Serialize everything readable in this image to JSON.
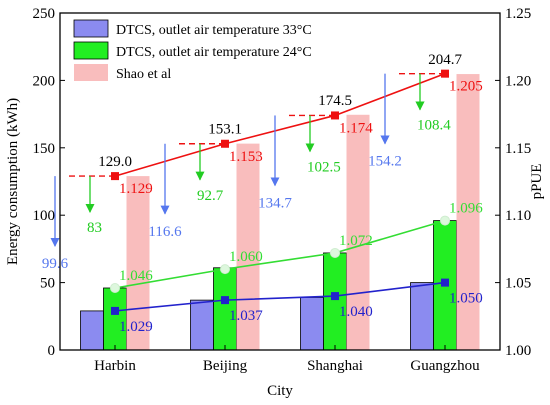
{
  "chart_data": {
    "type": "bar",
    "xlabel": "City",
    "ylabel": "Energy consumption (kWh)",
    "y2label": "pPUE",
    "categories": [
      "Harbin",
      "Beijing",
      "Shanghai",
      "Guangzhou"
    ],
    "ylim": [
      0,
      250
    ],
    "yticks": [
      "0",
      "50",
      "100",
      "150",
      "200",
      "250"
    ],
    "y2lim": [
      1.0,
      1.25
    ],
    "y2ticks": [
      "1.00",
      "1.05",
      "1.10",
      "1.15",
      "1.20",
      "1.25"
    ],
    "legend_position": "top-left",
    "series": [
      {
        "name": "DTCS, outlet air temperature 33°C",
        "type": "bar",
        "color": "#8B8BF0",
        "values": [
          29,
          37,
          39,
          50
        ]
      },
      {
        "name": "DTCS, outlet air temperature 24°C",
        "type": "bar",
        "color": "#22EE22",
        "values": [
          46,
          61,
          72,
          96
        ]
      },
      {
        "name": "Shao et al",
        "type": "bar",
        "color": "#F9BDBD",
        "values": [
          129.0,
          153.1,
          174.5,
          204.7
        ]
      }
    ],
    "bar_labels": {
      "shao": [
        "129.0",
        "153.1",
        "174.5",
        "204.7"
      ]
    },
    "ppue_lines": [
      {
        "color": "#2222CC",
        "values": [
          1.029,
          1.037,
          1.04,
          1.05
        ],
        "labels": [
          "1.029",
          "1.037",
          "1.040",
          "1.050"
        ]
      },
      {
        "color": "#33DD33",
        "values": [
          1.046,
          1.06,
          1.072,
          1.096
        ],
        "labels": [
          "1.046",
          "1.060",
          "1.072",
          "1.096"
        ]
      },
      {
        "color": "#EE1111",
        "values": [
          1.129,
          1.153,
          1.174,
          1.205
        ],
        "labels": [
          "1.129",
          "1.153",
          "1.174",
          "1.205"
        ]
      }
    ],
    "savings": {
      "vs_33C": {
        "color": "#5577EE",
        "values": [
          99.6,
          116.6,
          134.7,
          154.2
        ],
        "labels": [
          "99.6",
          "116.6",
          "134.7",
          "154.2"
        ]
      },
      "vs_24C": {
        "color": "#22CC22",
        "values": [
          83,
          92.7,
          102.5,
          108.4
        ],
        "labels": [
          "83",
          "92.7",
          "102.5",
          "108.4"
        ]
      }
    }
  }
}
